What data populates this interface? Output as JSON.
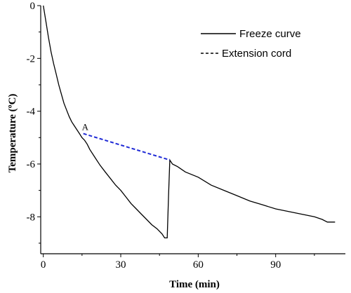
{
  "chart_data": {
    "type": "line",
    "title": "",
    "xlabel": "Time (min)",
    "ylabel": "Temperature (ºC)",
    "xlim": [
      -1,
      117
    ],
    "ylim": [
      -9.4,
      0
    ],
    "xticks": [
      0,
      30,
      60,
      90
    ],
    "yticks": [
      0,
      -2,
      -4,
      -6,
      -8
    ],
    "tick_labels_x": [
      "0",
      "30",
      "60",
      "90"
    ],
    "tick_labels_y": [
      "0",
      "-2",
      "-4",
      "-6",
      "-8"
    ],
    "grid": false,
    "legend_position": "top-right",
    "series": [
      {
        "name": "Freeze curve",
        "style": "solid",
        "color": "#000000",
        "x": [
          0,
          1,
          2,
          3,
          4,
          5,
          6,
          7,
          8,
          9,
          10,
          11,
          12,
          13,
          14,
          15,
          16,
          17,
          18,
          20,
          22,
          24,
          26,
          28,
          30,
          32,
          34,
          36,
          38,
          40,
          42,
          44,
          46,
          47,
          48,
          48.5,
          49,
          50,
          52,
          55,
          60,
          65,
          70,
          75,
          80,
          85,
          90,
          95,
          100,
          105,
          108,
          110,
          113
        ],
        "y": [
          0,
          -0.6,
          -1.2,
          -1.75,
          -2.2,
          -2.6,
          -3.0,
          -3.35,
          -3.7,
          -3.95,
          -4.2,
          -4.4,
          -4.55,
          -4.7,
          -4.85,
          -5.0,
          -5.1,
          -5.25,
          -5.45,
          -5.75,
          -6.05,
          -6.3,
          -6.55,
          -6.8,
          -7.0,
          -7.25,
          -7.5,
          -7.7,
          -7.9,
          -8.1,
          -8.3,
          -8.45,
          -8.65,
          -8.8,
          -8.8,
          -7.2,
          -5.85,
          -6.0,
          -6.1,
          -6.3,
          -6.5,
          -6.8,
          -7.0,
          -7.2,
          -7.4,
          -7.55,
          -7.7,
          -7.8,
          -7.9,
          -8.0,
          -8.1,
          -8.2,
          -8.2
        ]
      },
      {
        "name": "Extension cord",
        "style": "dashed",
        "color": "#1f2ad6",
        "x": [
          15.5,
          49
        ],
        "y": [
          -4.85,
          -5.85
        ]
      }
    ],
    "annotations": [
      {
        "text": "A",
        "x": 15.5,
        "y": -4.85
      }
    ]
  },
  "legend": {
    "items": [
      {
        "label": "Freeze curve",
        "style": "solid"
      },
      {
        "label": "Extension cord",
        "style": "dashed"
      }
    ]
  }
}
